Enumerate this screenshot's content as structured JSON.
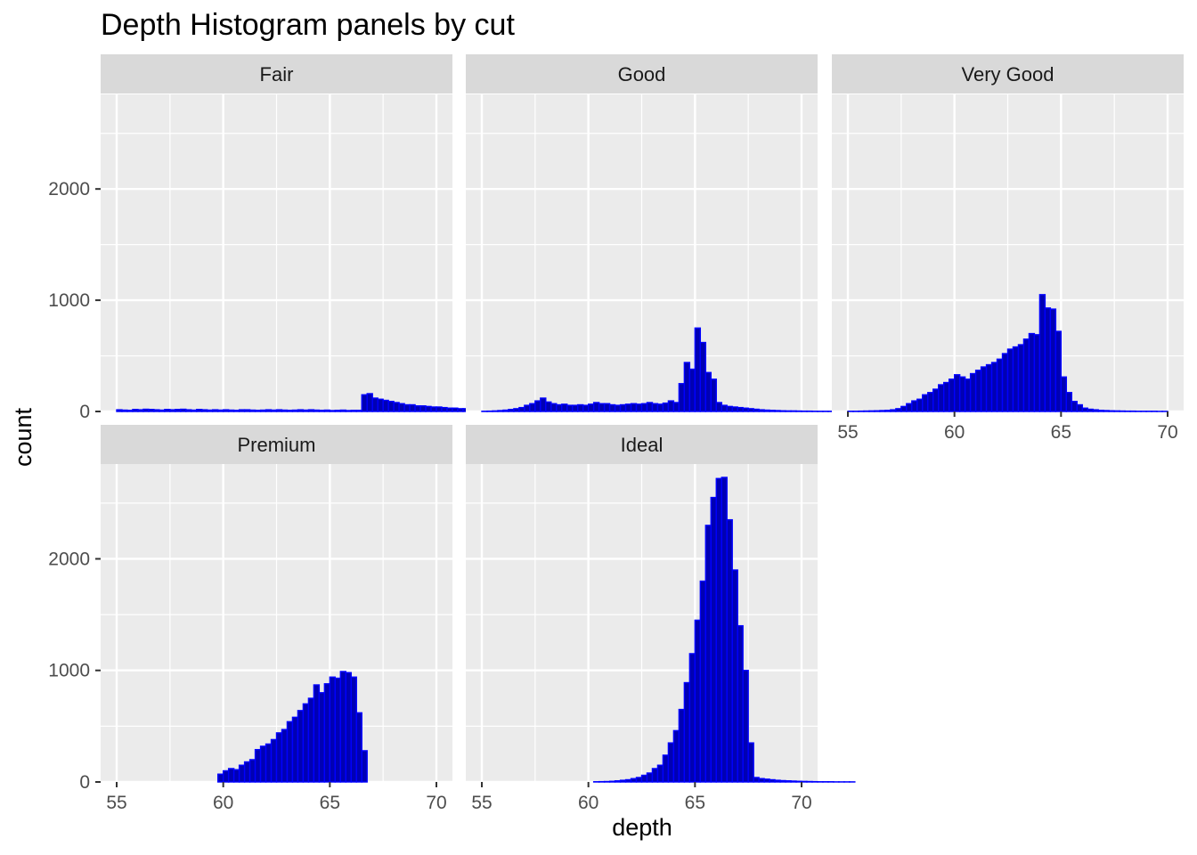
{
  "chart_data": {
    "type": "bar",
    "title": "Depth Histogram panels by cut",
    "xlabel": "depth",
    "ylabel": "count",
    "xlim": [
      55,
      70
    ],
    "ylim": [
      0,
      2850
    ],
    "x_breaks": [
      55,
      60,
      65,
      70
    ],
    "y_breaks": [
      0,
      1000,
      2000
    ],
    "bin_start": 55,
    "bin_width": 0.25,
    "bar_fill": "#0000b3",
    "bar_outline": "#0000ff",
    "panel_background": "#ebebeb",
    "strip_background": "#d9d9d9",
    "grid": true,
    "panels": [
      {
        "name": "Fair",
        "values": [
          15,
          12,
          10,
          18,
          15,
          20,
          18,
          15,
          12,
          18,
          15,
          18,
          20,
          15,
          12,
          18,
          15,
          12,
          15,
          12,
          15,
          12,
          10,
          15,
          15,
          12,
          10,
          12,
          15,
          12,
          15,
          12,
          10,
          12,
          15,
          12,
          15,
          12,
          10,
          12,
          8,
          10,
          12,
          8,
          10,
          10,
          150,
          160,
          120,
          110,
          100,
          90,
          80,
          70,
          60,
          60,
          50,
          50,
          45,
          40,
          40,
          35,
          30,
          30,
          25,
          25,
          20,
          20,
          20,
          20
        ]
      },
      {
        "name": "Good",
        "values": [
          2,
          3,
          5,
          8,
          12,
          18,
          25,
          35,
          55,
          70,
          95,
          120,
          85,
          70,
          60,
          65,
          55,
          55,
          60,
          55,
          65,
          80,
          70,
          70,
          60,
          55,
          60,
          65,
          70,
          65,
          70,
          80,
          70,
          65,
          75,
          95,
          80,
          250,
          440,
          380,
          750,
          620,
          350,
          290,
          80,
          55,
          45,
          40,
          35,
          30,
          25,
          20,
          15,
          12,
          10,
          8,
          6,
          5,
          5,
          4,
          3,
          3,
          2,
          2,
          2,
          2,
          1,
          1,
          1,
          1
        ]
      },
      {
        "name": "Very Good",
        "values": [
          2,
          2,
          3,
          4,
          5,
          6,
          8,
          10,
          15,
          25,
          45,
          70,
          95,
          110,
          150,
          170,
          200,
          240,
          260,
          290,
          330,
          310,
          290,
          340,
          370,
          400,
          420,
          440,
          470,
          520,
          560,
          580,
          600,
          650,
          700,
          690,
          1050,
          930,
          920,
          720,
          310,
          170,
          90,
          60,
          30,
          20,
          15,
          10,
          8,
          6,
          5,
          4,
          3,
          3,
          2,
          2,
          2,
          2,
          1,
          1
        ]
      },
      {
        "name": "Premium",
        "values": [
          0,
          0,
          0,
          0,
          0,
          0,
          0,
          0,
          0,
          0,
          0,
          0,
          0,
          0,
          0,
          0,
          0,
          0,
          0,
          70,
          100,
          120,
          110,
          150,
          180,
          200,
          290,
          320,
          340,
          380,
          440,
          470,
          540,
          580,
          640,
          700,
          750,
          870,
          800,
          880,
          940,
          930,
          990,
          980,
          940,
          620,
          280,
          0,
          0,
          0,
          0,
          0,
          0,
          0,
          0,
          0,
          0,
          0,
          0,
          0
        ]
      },
      {
        "name": "Ideal",
        "values": [
          0,
          0,
          0,
          0,
          0,
          0,
          0,
          0,
          0,
          0,
          0,
          0,
          0,
          0,
          0,
          0,
          0,
          0,
          0,
          0,
          0,
          2,
          3,
          4,
          6,
          10,
          15,
          20,
          30,
          40,
          60,
          80,
          120,
          150,
          240,
          350,
          460,
          650,
          890,
          1150,
          1450,
          1800,
          2300,
          2550,
          2720,
          2730,
          2350,
          1900,
          1400,
          1000,
          350,
          40,
          30,
          25,
          20,
          15,
          12,
          10,
          8,
          6,
          5,
          4,
          3,
          2,
          2,
          2,
          1,
          1,
          1,
          1
        ]
      }
    ]
  }
}
